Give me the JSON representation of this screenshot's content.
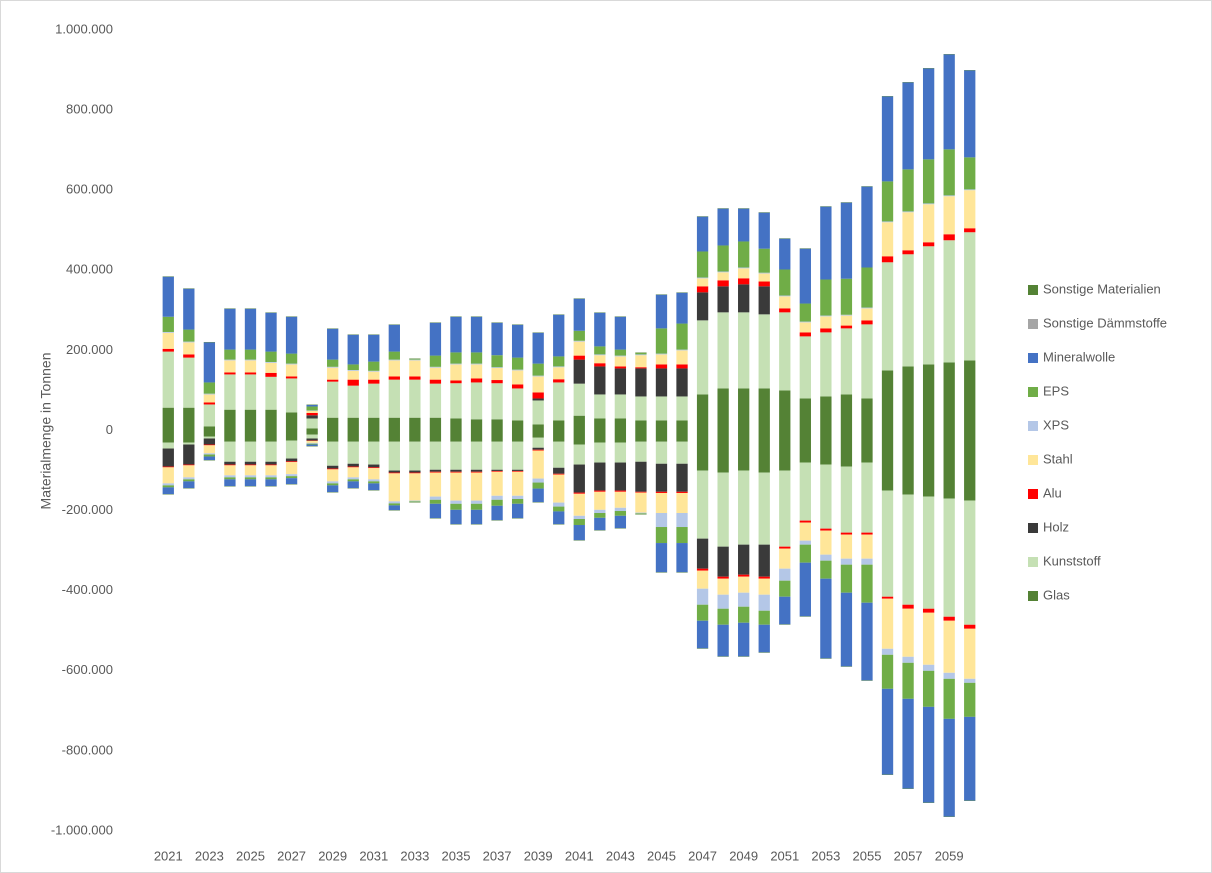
{
  "chart_data": {
    "type": "bar",
    "stacked": true,
    "y_label": "Materialmenge in Tonnen",
    "categories": [
      "2021",
      null,
      "2023",
      null,
      "2025",
      null,
      "2027",
      null,
      "2029",
      null,
      "2031",
      null,
      "2033",
      null,
      "2035",
      null,
      "2037",
      null,
      "2039",
      null,
      "2041",
      null,
      "2043",
      null,
      "2045",
      null,
      "2047",
      null,
      "2049",
      null,
      "2051",
      null,
      "2053",
      null,
      "2055",
      null,
      "2057",
      null,
      "2059",
      null
    ],
    "ylim": [
      -1000000,
      1000000
    ],
    "yticks": [
      {
        "value": -1000000,
        "label": "-1.000.000"
      },
      {
        "value": -800000,
        "label": "-800.000"
      },
      {
        "value": -600000,
        "label": "-600.000"
      },
      {
        "value": -400000,
        "label": "-400.000"
      },
      {
        "value": -200000,
        "label": "-200.000"
      },
      0,
      {
        "value": 200000,
        "label": "200.000"
      },
      {
        "value": 400000,
        "label": "400.000"
      },
      {
        "value": 600000,
        "label": "600.000"
      },
      {
        "value": 800000,
        "label": "800.000"
      },
      {
        "value": 1000000,
        "label": "1.000.000"
      }
    ],
    "grid": false,
    "legend": "right",
    "series": [
      {
        "name": "Glas",
        "color": "#548235",
        "values": [
          57000,
          57000,
          10000,
          52000,
          52000,
          52000,
          45000,
          5000,
          32000,
          32000,
          32000,
          32000,
          32000,
          32000,
          30000,
          28000,
          28000,
          25000,
          15000,
          25000,
          37000,
          30000,
          30000,
          25000,
          25000,
          25000,
          90000,
          105000,
          105000,
          105000,
          100000,
          80000,
          85000,
          90000,
          80000,
          150000,
          160000,
          165000,
          170000,
          175000
        ],
        "negative_values": [
          -30000,
          -30000,
          -15000,
          -28000,
          -28000,
          -28000,
          -25000,
          -10000,
          -28000,
          -28000,
          -28000,
          -28000,
          -28000,
          -28000,
          -28000,
          -28000,
          -28000,
          -28000,
          -18000,
          -28000,
          -35000,
          -30000,
          -30000,
          -28000,
          -28000,
          -28000,
          -100000,
          -105000,
          -100000,
          -105000,
          -100000,
          -80000,
          -85000,
          -90000,
          -80000,
          -150000,
          -160000,
          -165000,
          -170000,
          -175000
        ]
      },
      {
        "name": "Kunststoff",
        "color": "#c5e0b4",
        "values": [
          140000,
          125000,
          55000,
          88000,
          88000,
          82000,
          85000,
          25000,
          90000,
          80000,
          85000,
          95000,
          95000,
          85000,
          88000,
          92000,
          90000,
          80000,
          60000,
          95000,
          80000,
          60000,
          60000,
          60000,
          60000,
          60000,
          185000,
          190000,
          190000,
          185000,
          195000,
          155000,
          160000,
          165000,
          185000,
          270000,
          280000,
          295000,
          305000,
          320000
        ],
        "negative_values": [
          -15000,
          -5000,
          -5000,
          -50000,
          -50000,
          -50000,
          -45000,
          -10000,
          -60000,
          -55000,
          -57000,
          -72000,
          -72000,
          -70000,
          -70000,
          -70000,
          -70000,
          -70000,
          -25000,
          -65000,
          -50000,
          -50000,
          -50000,
          -50000,
          -55000,
          -55000,
          -170000,
          -185000,
          -185000,
          -180000,
          -190000,
          -145000,
          -160000,
          -165000,
          -175000,
          -265000,
          -275000,
          -280000,
          -295000,
          -310000
        ]
      },
      {
        "name": "Holz",
        "color": "#3a3a3a",
        "values": [
          0,
          0,
          0,
          0,
          0,
          0,
          0,
          8000,
          0,
          0,
          0,
          0,
          0,
          0,
          0,
          0,
          0,
          0,
          5000,
          0,
          60000,
          70000,
          65000,
          70000,
          70000,
          70000,
          70000,
          65000,
          70000,
          70000,
          0,
          0,
          0,
          0,
          0,
          0,
          0,
          0,
          0,
          0
        ],
        "negative_values": [
          -45000,
          -50000,
          -15000,
          -7000,
          -7000,
          -7000,
          -7000,
          -5000,
          -7000,
          -7000,
          -7000,
          -5000,
          -5000,
          -5000,
          -5000,
          -5000,
          -3000,
          -3000,
          -5000,
          -15000,
          -70000,
          -70000,
          -70000,
          -75000,
          -70000,
          -70000,
          -75000,
          -75000,
          -75000,
          -80000,
          0,
          0,
          0,
          0,
          0,
          0,
          0,
          0,
          0,
          0
        ]
      },
      {
        "name": "Alu",
        "color": "#ff0000",
        "values": [
          7000,
          8000,
          5000,
          5000,
          5000,
          10000,
          5000,
          6000,
          5000,
          15000,
          10000,
          8000,
          8000,
          10000,
          7000,
          10000,
          8000,
          10000,
          15000,
          8000,
          10000,
          8000,
          5000,
          3000,
          10000,
          10000,
          15000,
          15000,
          15000,
          12000,
          10000,
          10000,
          10000,
          7000,
          10000,
          15000,
          10000,
          10000,
          15000,
          10000
        ],
        "negative_values": [
          -2000,
          -2000,
          -2000,
          -2000,
          -2000,
          -2000,
          -2000,
          -1000,
          -2000,
          -2000,
          -2000,
          -2000,
          -2000,
          -2000,
          -2000,
          -2000,
          -2000,
          -2000,
          -2000,
          -2000,
          -3000,
          -3000,
          -3000,
          -2000,
          -3000,
          -3000,
          -5000,
          -5000,
          -5000,
          -5000,
          -5000,
          -5000,
          -5000,
          -5000,
          -5000,
          -5000,
          -10000,
          -10000,
          -10000,
          -10000
        ]
      },
      {
        "name": "Stahl",
        "color": "#ffe699",
        "values": [
          40000,
          30000,
          20000,
          30000,
          30000,
          25000,
          30000,
          5000,
          30000,
          22000,
          20000,
          40000,
          40000,
          30000,
          40000,
          35000,
          30000,
          35000,
          40000,
          30000,
          35000,
          20000,
          25000,
          30000,
          25000,
          35000,
          20000,
          20000,
          25000,
          20000,
          30000,
          25000,
          30000,
          25000,
          30000,
          85000,
          95000,
          95000,
          95000,
          95000
        ],
        "negative_values": [
          -40000,
          -30000,
          -20000,
          -25000,
          -25000,
          -25000,
          -30000,
          -5000,
          -30000,
          -25000,
          -28000,
          -70000,
          -68000,
          -60000,
          -70000,
          -70000,
          -60000,
          -60000,
          -70000,
          -70000,
          -55000,
          -45000,
          -40000,
          -50000,
          -50000,
          -50000,
          -45000,
          -40000,
          -40000,
          -40000,
          -50000,
          -45000,
          -60000,
          -60000,
          -60000,
          -125000,
          -120000,
          -130000,
          -130000,
          -125000
        ]
      },
      {
        "name": "XPS",
        "color": "#b4c7e7",
        "values": [
          2000,
          2000,
          2000,
          2000,
          2000,
          2000,
          2000,
          1000,
          2000,
          2000,
          2000,
          2000,
          2000,
          2000,
          2000,
          2000,
          2000,
          2000,
          2000,
          2000,
          2000,
          2000,
          2000,
          2000,
          2000,
          2000,
          2000,
          2000,
          2000,
          2000,
          2000,
          2000,
          2000,
          2000,
          2000,
          2000,
          2000,
          2000,
          2000,
          2000
        ],
        "negative_values": [
          -5000,
          -5000,
          -3000,
          -5000,
          -5000,
          -5000,
          -5000,
          -2000,
          -5000,
          -5000,
          -5000,
          -5000,
          -2000,
          -8000,
          -8000,
          -8000,
          -10000,
          -8000,
          -10000,
          -10000,
          -8000,
          -8000,
          -8000,
          -2000,
          -35000,
          -35000,
          -40000,
          -35000,
          -35000,
          -40000,
          -30000,
          -10000,
          -15000,
          -15000,
          -15000,
          -15000,
          -15000,
          -15000,
          -15000,
          -10000
        ]
      },
      {
        "name": "EPS",
        "color": "#70ad47",
        "values": [
          38000,
          30000,
          28000,
          25000,
          25000,
          26000,
          25000,
          10000,
          18000,
          14000,
          23000,
          20000,
          2000,
          28000,
          28000,
          28000,
          30000,
          30000,
          30000,
          25000,
          25000,
          20000,
          15000,
          4000,
          63000,
          65000,
          65000,
          65000,
          65000,
          60000,
          65000,
          45000,
          90000,
          90000,
          100000,
          100000,
          105000,
          110000,
          115000,
          80000
        ],
        "negative_values": [
          -5000,
          -5000,
          -5000,
          -5000,
          -5000,
          -5000,
          -5000,
          -2000,
          -5000,
          -5000,
          -5000,
          -5000,
          -2000,
          -10000,
          -15000,
          -15000,
          -15000,
          -12000,
          -15000,
          -12000,
          -15000,
          -12000,
          -12000,
          -2000,
          -40000,
          -40000,
          -40000,
          -40000,
          -40000,
          -35000,
          -40000,
          -45000,
          -45000,
          -70000,
          -95000,
          -85000,
          -90000,
          -90000,
          -100000,
          -85000
        ]
      },
      {
        "name": "Mineralwolle",
        "color": "#4472c4",
        "values": [
          100000,
          102000,
          100000,
          102000,
          102000,
          97000,
          92000,
          4000,
          77000,
          74000,
          67000,
          67000,
          0,
          82000,
          89000,
          89000,
          81000,
          82000,
          77000,
          104000,
          80000,
          84000,
          82000,
          0,
          84000,
          77000,
          87000,
          92000,
          82000,
          90000,
          77000,
          137000,
          182000,
          190000,
          202000,
          212000,
          217000,
          227000,
          237000,
          217000
        ],
        "negative_values": [
          -17000,
          -17000,
          -9000,
          -17000,
          -17000,
          -17000,
          -15000,
          -4000,
          -17000,
          -17000,
          -17000,
          -12000,
          0,
          -36000,
          -36000,
          -36000,
          -36000,
          -36000,
          -34000,
          -32000,
          -38000,
          -31000,
          -31000,
          0,
          -73000,
          -73000,
          -69000,
          -79000,
          -84000,
          -69000,
          -69000,
          -134000,
          -199000,
          -184000,
          -194000,
          -214000,
          -224000,
          -239000,
          -244000,
          -209000
        ]
      },
      {
        "name": "Sonstige Dämmstoffe",
        "color": "#a5a5a5",
        "values": [
          0,
          0,
          0,
          0,
          0,
          0,
          0,
          0,
          0,
          0,
          0,
          0,
          0,
          0,
          0,
          0,
          0,
          0,
          0,
          0,
          0,
          0,
          0,
          0,
          0,
          0,
          0,
          0,
          0,
          0,
          0,
          0,
          0,
          0,
          0,
          0,
          0,
          0,
          0,
          0
        ],
        "negative_values": [
          0,
          0,
          0,
          0,
          0,
          0,
          0,
          0,
          0,
          0,
          0,
          0,
          0,
          0,
          0,
          0,
          0,
          0,
          0,
          0,
          0,
          0,
          0,
          0,
          0,
          0,
          0,
          0,
          0,
          0,
          0,
          0,
          0,
          0,
          0,
          0,
          0,
          0,
          0,
          0
        ]
      },
      {
        "name": "Sonstige Materialien",
        "color": "#548235",
        "values": [
          1000,
          1000,
          1000,
          1000,
          1000,
          1000,
          1000,
          1000,
          1000,
          1000,
          1000,
          1000,
          1000,
          1000,
          1000,
          1000,
          1000,
          1000,
          1000,
          1000,
          1000,
          1000,
          1000,
          1000,
          1000,
          1000,
          1000,
          1000,
          1000,
          1000,
          1000,
          1000,
          1000,
          1000,
          1000,
          1000,
          1000,
          1000,
          1000,
          1000
        ],
        "negative_values": [
          -1000,
          -1000,
          -1000,
          -1000,
          -1000,
          -1000,
          -1000,
          -1000,
          -1000,
          -1000,
          -1000,
          -1000,
          -1000,
          -1000,
          -1000,
          -1000,
          -1000,
          -1000,
          -1000,
          -1000,
          -1000,
          -1000,
          -1000,
          -1000,
          -1000,
          -1000,
          -1000,
          -1000,
          -1000,
          -1000,
          -1000,
          -1000,
          -1000,
          -1000,
          -1000,
          -1000,
          -1000,
          -1000,
          -1000,
          -1000
        ]
      }
    ]
  }
}
